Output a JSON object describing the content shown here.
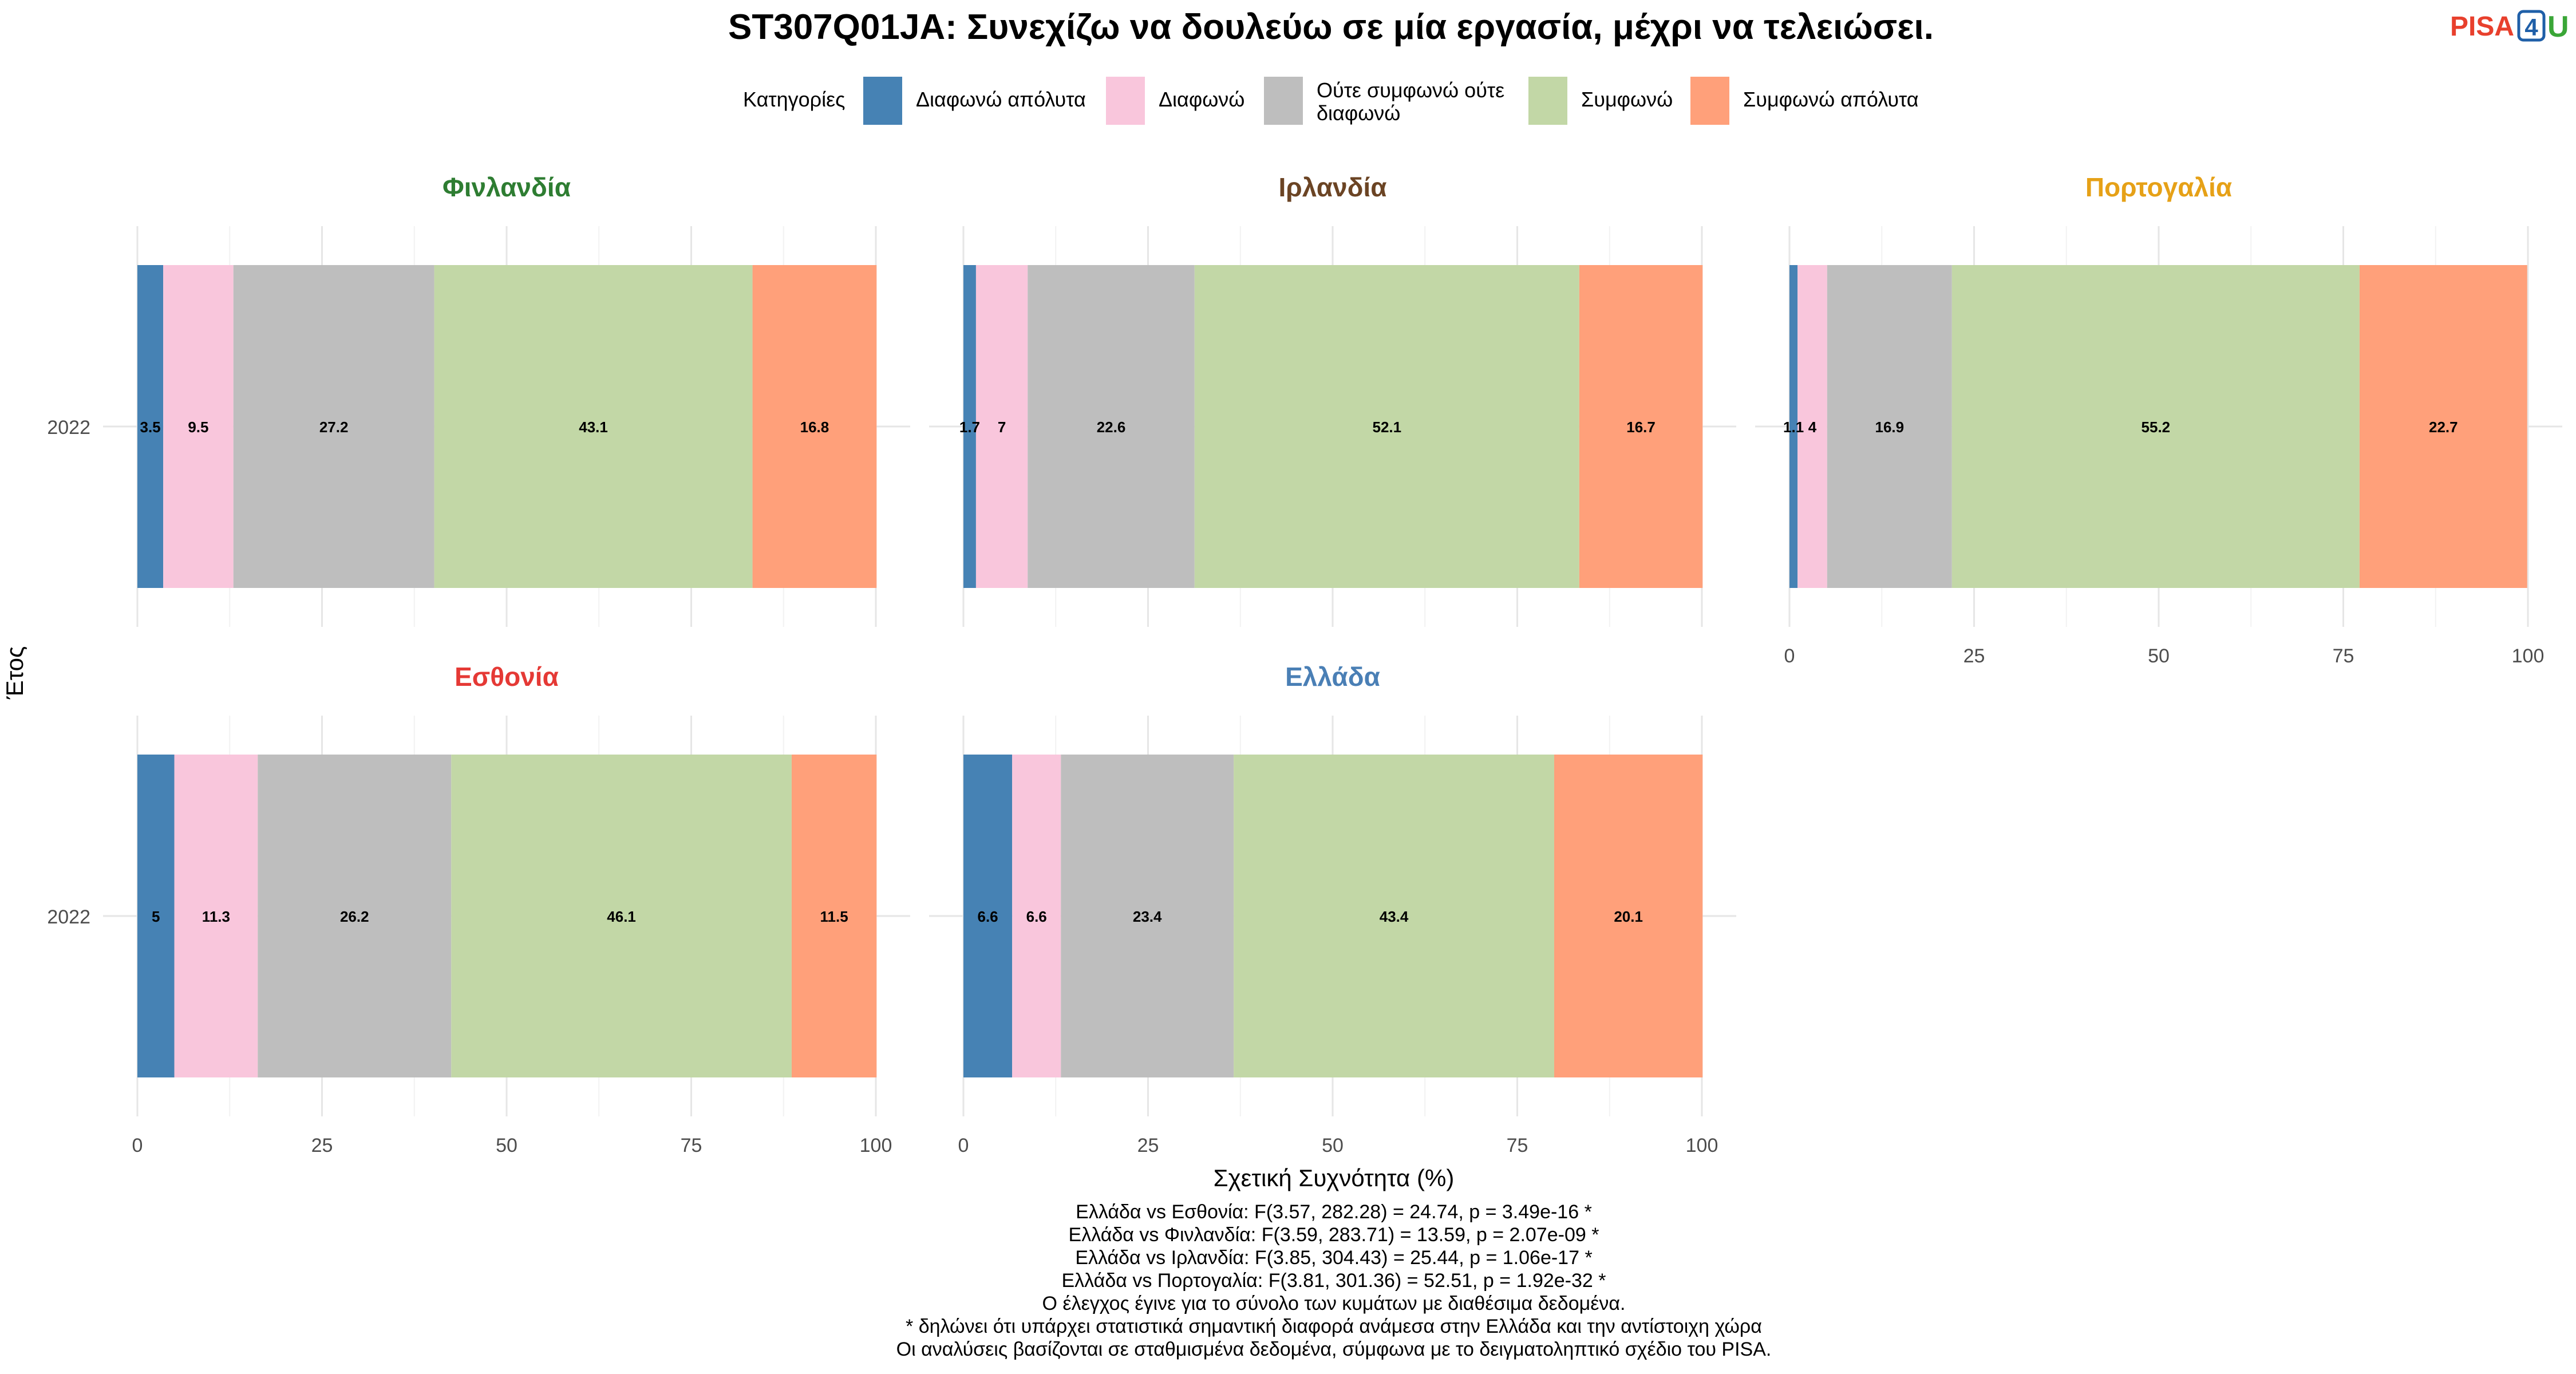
{
  "logo": {
    "part1": "PISA",
    "part2": "4",
    "part3": "U",
    "colors": {
      "part1": "#e8402d",
      "part2": "#1f5fa8",
      "part3": "#3aa637"
    }
  },
  "chart_data": {
    "type": "bar",
    "orientation": "horizontal-stacked",
    "title": "ST307Q01JA: Συνεχίζω να δουλεύω σε μία εργασία, μέχρι να τελειώσει.",
    "xlabel": "Σχετική Συχνότητα (%)",
    "ylabel": "Έτος",
    "xlim": [
      0,
      100
    ],
    "x_ticks": [
      0,
      25,
      50,
      75,
      100
    ],
    "grid": true,
    "legend": {
      "title": "Κατηγορίες",
      "placement": "top",
      "entries": [
        {
          "name": "Διαφωνώ απόλυτα",
          "color": "#4682b4"
        },
        {
          "name": "Διαφωνώ",
          "color": "#f9c6dc"
        },
        {
          "name": "Ούτε συμφωνώ ούτε διαφωνώ",
          "color": "#bebebe"
        },
        {
          "name": "Συμφωνώ",
          "color": "#c2d7a6"
        },
        {
          "name": "Συμφωνώ απόλυτα",
          "color": "#ffa07a"
        }
      ]
    },
    "panels": [
      {
        "country": "Φινλανδία",
        "title_color": "#2e7d32",
        "year": "2022",
        "values": [
          3.5,
          9.5,
          27.2,
          43.1,
          16.8
        ]
      },
      {
        "country": "Ιρλανδία",
        "title_color": "#6b4424",
        "year": "2022",
        "values": [
          1.7,
          7,
          22.6,
          52.1,
          16.7
        ]
      },
      {
        "country": "Πορτογαλία",
        "title_color": "#e6a117",
        "year": "2022",
        "values": [
          1.1,
          4,
          16.9,
          55.2,
          22.7
        ]
      },
      {
        "country": "Εσθονία",
        "title_color": "#e53935",
        "year": "2022",
        "values": [
          5,
          11.3,
          26.2,
          46.1,
          11.5
        ]
      },
      {
        "country": "Ελλάδα",
        "title_color": "#4a7fb5",
        "year": "2022",
        "values": [
          6.6,
          6.6,
          23.4,
          43.4,
          20.1
        ]
      }
    ],
    "caption": [
      "Ελλάδα vs Εσθονία: F(3.57, 282.28) = 24.74, p = 3.49e-16 *",
      "Ελλάδα vs Φινλανδία: F(3.59, 283.71) = 13.59, p = 2.07e-09 *",
      "Ελλάδα vs Ιρλανδία: F(3.85, 304.43) = 25.44, p = 1.06e-17 *",
      "Ελλάδα vs Πορτογαλία: F(3.81, 301.36) = 52.51, p = 1.92e-32 *",
      "Ο έλεγχος έγινε για το σύνολο των κυμάτων με διαθέσιμα δεδομένα.",
      "* δηλώνει ότι υπάρχει στατιστικά σημαντική διαφορά ανάμεσα στην Ελλάδα και την αντίστοιχη χώρα",
      "Οι αναλύσεις βασίζονται σε σταθμισμένα δεδομένα, σύμφωνα με το δειγματοληπτικό σχέδιο του PISA."
    ]
  }
}
